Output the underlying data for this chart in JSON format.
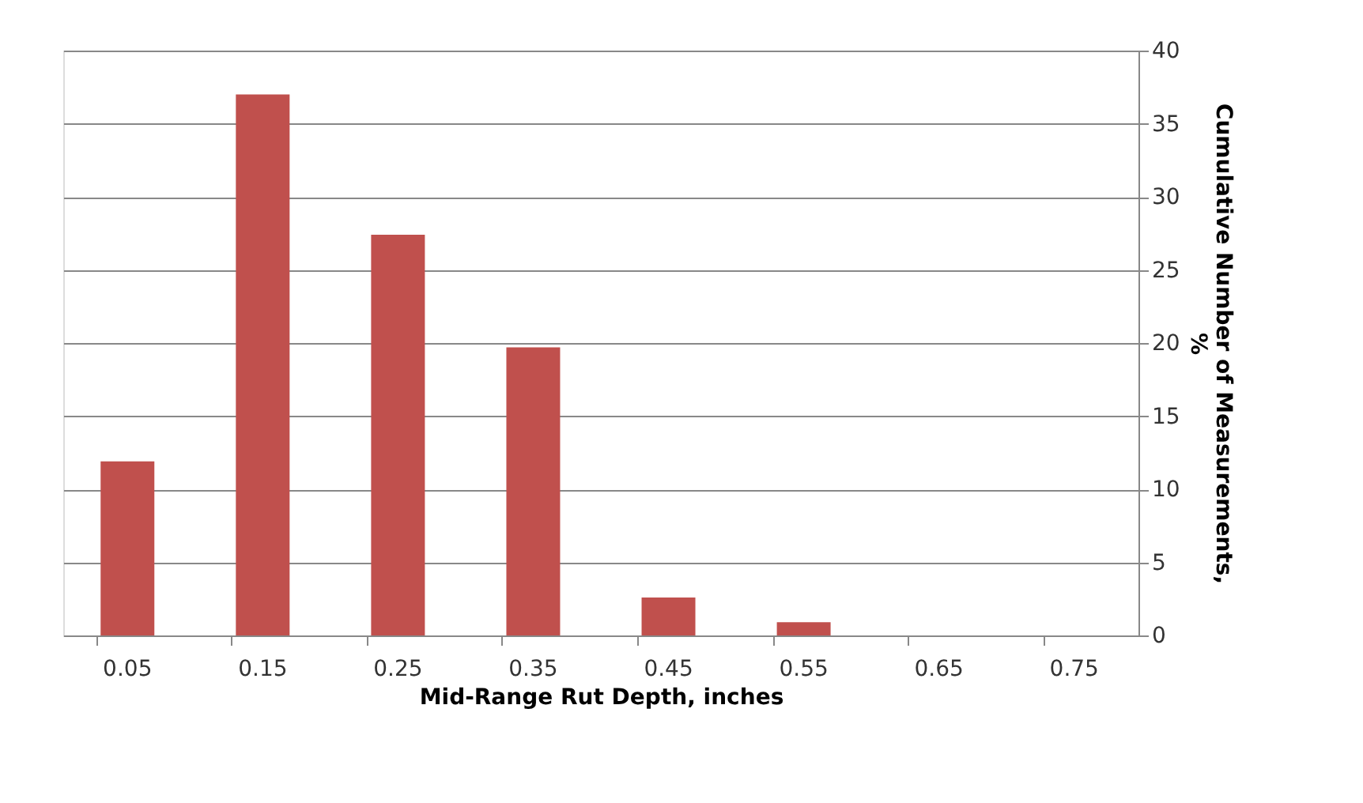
{
  "chart_data": {
    "type": "bar",
    "xlabel": "Mid-Range Rut Depth, inches",
    "ylabel": "Cumulative Number of Measurements,\n%",
    "categories": [
      "0.05",
      "0.15",
      "0.25",
      "0.35",
      "0.45",
      "0.55",
      "0.65",
      "0.75"
    ],
    "values": [
      11.9,
      37,
      27.4,
      19.7,
      2.6,
      0.9,
      0,
      0
    ],
    "color": "#c0504d",
    "ylim": [
      0,
      40
    ],
    "yticks": [
      0,
      5,
      10,
      15,
      20,
      25,
      30,
      35,
      40
    ],
    "grid": "y"
  }
}
